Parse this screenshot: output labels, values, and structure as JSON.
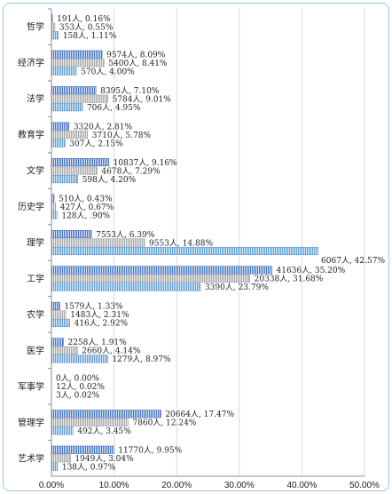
{
  "chart_data": {
    "type": "bar",
    "orientation": "horizontal",
    "x_ticks": [
      "0.00%",
      "10.00%",
      "20.00%",
      "30.00%",
      "40.00%",
      "50.00%"
    ],
    "xlim": [
      0,
      50
    ],
    "grid": true,
    "categories": [
      "哲学",
      "经济学",
      "法学",
      "教育学",
      "文学",
      "历史学",
      "理学",
      "工学",
      "农学",
      "医学",
      "军事学",
      "管理学",
      "艺术学"
    ],
    "series": [
      {
        "color": "#4472c4",
        "pattern": "vertical-stripes",
        "values": [
          0.16,
          8.09,
          7.1,
          2.81,
          9.16,
          0.43,
          6.39,
          35.2,
          1.33,
          1.91,
          0.0,
          17.47,
          9.95
        ],
        "labels": [
          "191人, 0.16%",
          "9574人, 8.09%",
          "8395人, 7.10%",
          "3320人, 2.81%",
          "10837人, 9.16%",
          "510人, 0.43%",
          "7553人, 6.39%",
          "41636人, 35.20%",
          "1579人, 1.33%",
          "2258人, 1.91%",
          "0人, 0.00%",
          "20664人, 17.47%",
          "11770人, 9.95%"
        ]
      },
      {
        "color": "#a5a5a5",
        "pattern": "vertical-stripes",
        "values": [
          0.55,
          8.41,
          9.01,
          5.78,
          7.29,
          0.67,
          14.88,
          31.68,
          2.31,
          4.14,
          0.02,
          12.24,
          3.04
        ],
        "labels": [
          "353人, 0.55%",
          "5400人, 8.41%",
          "5784人, 9.01%",
          "3710人, 5.78%",
          "4678人, 7.29%",
          "427人, 0.67%",
          "9553人, 14.88%",
          "20338人, 31.68%",
          "1483人, 2.31%",
          "2660人, 4.14%",
          "12人, 0.02%",
          "7860人, 12.24%",
          "1949人, 3.04%"
        ]
      },
      {
        "color": "#5b9bd5",
        "pattern": "vertical-stripes",
        "values": [
          1.11,
          4.0,
          4.95,
          2.15,
          4.2,
          0.9,
          42.57,
          23.79,
          2.92,
          8.97,
          0.02,
          3.45,
          0.97
        ],
        "labels": [
          "158人, 1.11%",
          "570人, 4.00%",
          "706人, 4.95%",
          "307人, 2.15%",
          "598人, 4.20%",
          "128人, .90%",
          "6067人, 42.57%",
          "3390人, 23.79%",
          "416人, 2.92%",
          "1279人, 8.97%",
          "3人, 0.02%",
          "492人, 3.45%",
          "138人, 0.97%"
        ]
      }
    ]
  }
}
